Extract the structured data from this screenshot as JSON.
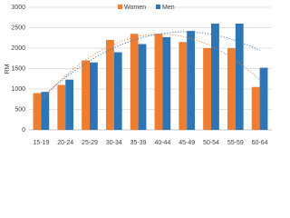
{
  "chart_data": {
    "type": "bar",
    "y_label": "RM",
    "categories": [
      "15-19",
      "20-24",
      "25-29",
      "30-34",
      "35-39",
      "40-44",
      "45-49",
      "50-54",
      "55-59",
      "60-64"
    ],
    "series": [
      {
        "name": "Women",
        "color": "#ed7d31",
        "values": [
          900,
          1100,
          1700,
          2200,
          2350,
          2350,
          2150,
          2000,
          2000,
          1050
        ]
      },
      {
        "name": "Men",
        "color": "#2e75b6",
        "values": [
          930,
          1230,
          1650,
          1900,
          2100,
          2270,
          2420,
          2600,
          2600,
          1520
        ]
      }
    ],
    "ylim": [
      0,
      3000
    ],
    "yticks": [
      0,
      500,
      1000,
      1500,
      2000,
      2500,
      3000
    ],
    "grid": true,
    "legend": "top",
    "trendline": "polynomial"
  }
}
